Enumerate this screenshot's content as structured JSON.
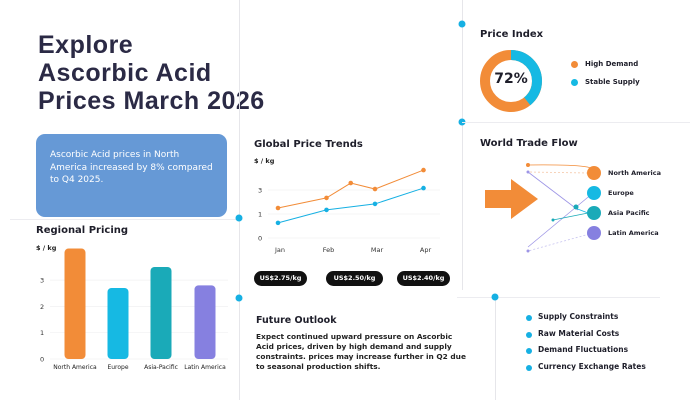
{
  "header": {
    "title_lines": [
      "Explore",
      "Ascorbic Acid",
      "Prices March 2026"
    ]
  },
  "highlight": {
    "text": "Ascorbic Acid prices in North America increased by 8% compared to Q4 2025."
  },
  "colors": {
    "orange": "#f28c38",
    "cyan": "#16b9e3",
    "teal": "#1aaab8",
    "purple": "#8680e0",
    "box": "#6699d6"
  },
  "chart_data": [
    {
      "type": "bar",
      "title": "Regional Pricing",
      "ylabel": "$ / kg",
      "categories": [
        "North America",
        "Europe",
        "Asia-Pacific",
        "Latin America"
      ],
      "values": [
        4.2,
        2.7,
        3.5,
        2.8
      ],
      "y_ticks": [
        "0",
        "1",
        "2",
        "3"
      ],
      "ylim": [
        0,
        4.4
      ],
      "colors": [
        "#f28c38",
        "#16b9e3",
        "#1aaab8",
        "#8680e0"
      ]
    },
    {
      "type": "line",
      "title": "Global Price Trends",
      "ylabel": "$ / kg",
      "categories": [
        "Jan",
        "Feb",
        "Mar",
        "Apr"
      ],
      "y_tick_labels": [
        "0",
        "1",
        "3"
      ],
      "ylim": [
        0,
        3
      ],
      "series": [
        {
          "name": "orange",
          "color": "#f28c38",
          "x": [
            0,
            1,
            1.5,
            2,
            3
          ],
          "values": [
            1.25,
            1.67,
            2.29,
            2.04,
            2.83
          ]
        },
        {
          "name": "blue",
          "color": "#16b0e3",
          "x": [
            0,
            1,
            2,
            3
          ],
          "values": [
            0.63,
            1.17,
            1.42,
            2.08
          ]
        }
      ]
    },
    {
      "type": "pie",
      "title": "Price Index",
      "center_label": "72%",
      "slices": [
        {
          "label": "High Demand",
          "value": 72,
          "color": "#f28c38"
        },
        {
          "label": "Stable Supply",
          "value": 28,
          "color": "#16b9e3"
        }
      ]
    }
  ],
  "price_tags": [
    "US$2.75/kg",
    "US$2.50/kg",
    "US$2.40/kg"
  ],
  "trade_flow": {
    "title": "World Trade Flow",
    "regions": [
      "North America",
      "Europe",
      "Asia Pacific",
      "Latin America"
    ]
  },
  "outlook": {
    "title": "Future Outlook",
    "text": "Expect continued upward pressure on Ascorbic Acid prices, driven by high demand and supply constraints. prices may increase further in Q2 due to seasonal production shifts."
  },
  "factors": [
    "Supply Constraints",
    "Raw Material Costs",
    "Demand Fluctuations",
    "Currency Exchange Rates"
  ]
}
